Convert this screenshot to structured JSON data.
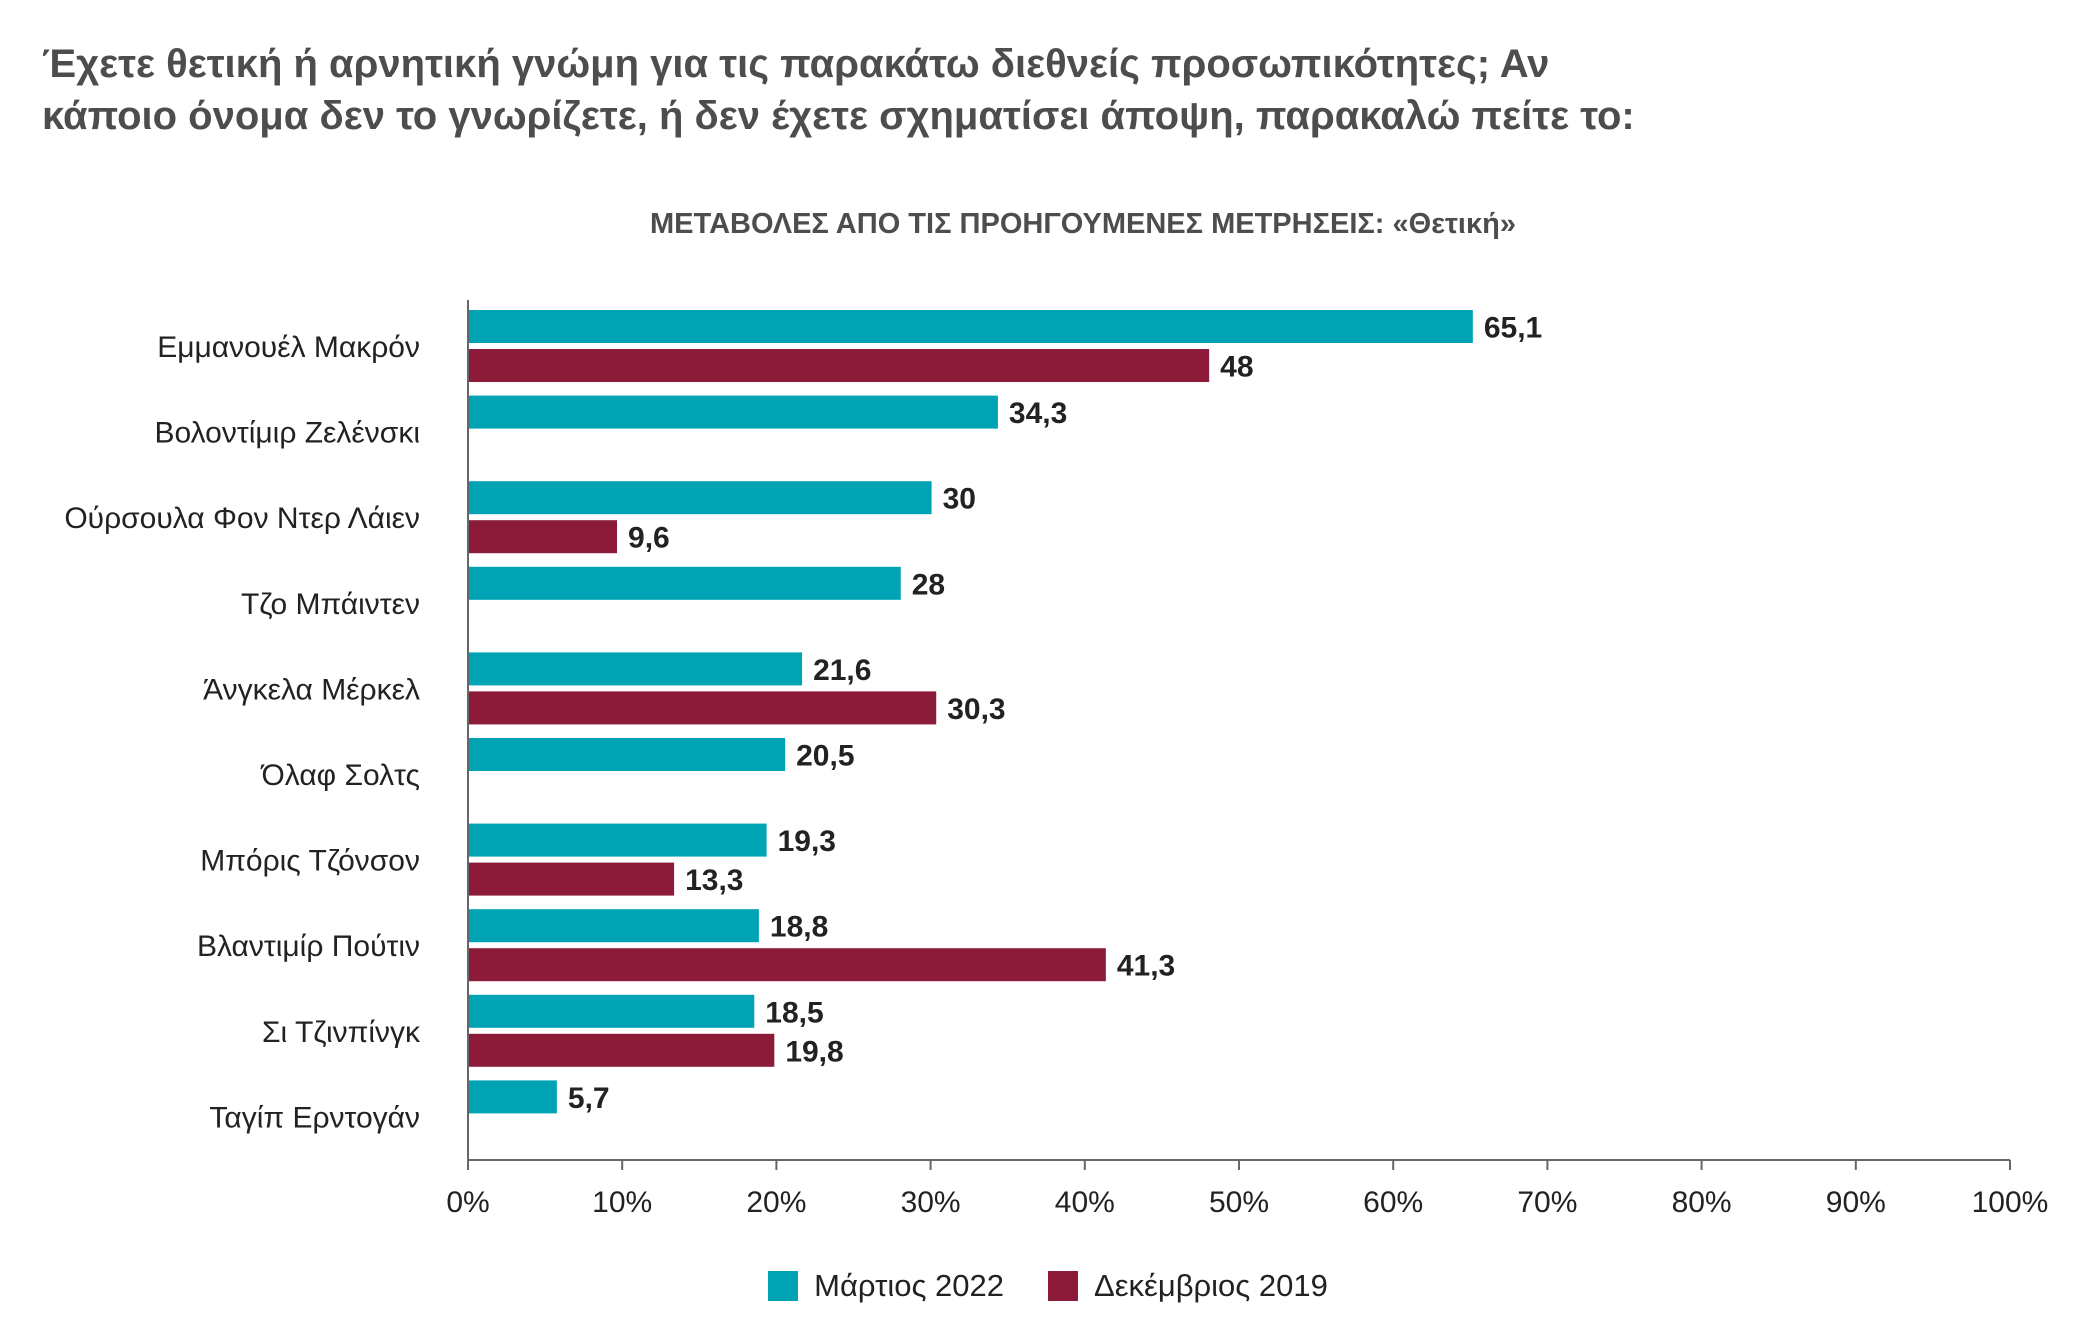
{
  "question": {
    "line1": "Έχετε θετική ή αρνητική γνώμη για τις παρακάτω διεθνείς προσωπικότητες; Αν",
    "line2": "κάποιο όνομα δεν το γνωρίζετε, ή δεν έχετε σχηματίσει άποψη, παρακαλώ πείτε το:"
  },
  "colors": {
    "march2022": "#00a3b4",
    "dec2019": "#8c1a39",
    "axis": "#666666",
    "text": "#222222"
  },
  "chart_data": {
    "type": "bar",
    "orientation": "horizontal",
    "title": "ΜΕΤΑΒΟΛΕΣ ΑΠΟ ΤΙΣ ΠΡΟΗΓΟΥΜΕΝΕΣ ΜΕΤΡΗΣΕΙΣ: «Θετική»",
    "categories": [
      "Εμμανουέλ Μακρόν",
      "Βολοντίμιρ Ζελένσκι",
      "Ούρσουλα Φον Ντερ Λάιεν",
      "Τζο Μπάιντεν",
      "Άνγκελα Μέρκελ",
      "Όλαφ Σολτς",
      "Μπόρις Τζόνσον",
      "Βλαντιμίρ Πούτιν",
      "Σι Τζινπίνγκ",
      "Ταγίπ Ερντογάν"
    ],
    "series": [
      {
        "name": "Μάρτιος 2022",
        "values": [
          65.1,
          34.3,
          30,
          28,
          21.6,
          20.5,
          19.3,
          18.8,
          18.5,
          5.7
        ],
        "labels": [
          "65,1",
          "34,3",
          "30",
          "28",
          "21,6",
          "20,5",
          "19,3",
          "18,8",
          "18,5",
          "5,7"
        ]
      },
      {
        "name": "Δεκέμβριος 2019",
        "values": [
          48,
          null,
          9.6,
          null,
          30.3,
          null,
          13.3,
          41.3,
          19.8,
          null
        ],
        "labels": [
          "48",
          "",
          "9,6",
          "",
          "30,3",
          "",
          "13,3",
          "41,3",
          "19,8",
          ""
        ]
      }
    ],
    "xlim": [
      0,
      100
    ],
    "xticks": [
      "0%",
      "10%",
      "20%",
      "30%",
      "40%",
      "50%",
      "60%",
      "70%",
      "80%",
      "90%",
      "100%"
    ],
    "legend_position": "bottom-center",
    "grid": false
  }
}
